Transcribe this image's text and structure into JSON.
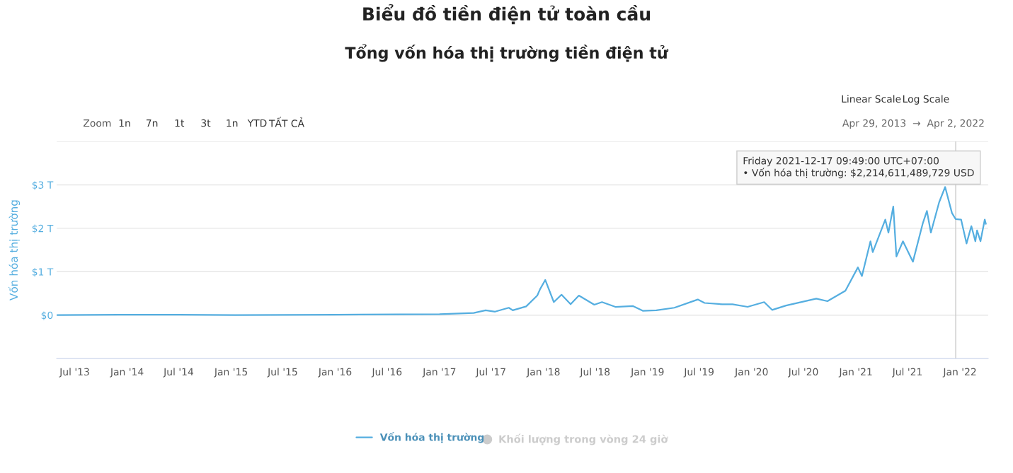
{
  "chart_data": {
    "type": "line",
    "title": "Biểu đồ tiền điện tử toàn cầu",
    "subtitle": "Tổng vốn hóa thị trường tiền điện tử",
    "ylabel": "Vốn hóa thị trường",
    "x": [
      "2013-04-29",
      "2013-11-30",
      "2014-06-01",
      "2015-01-15",
      "2016-01-01",
      "2017-01-01",
      "2017-05-01",
      "2017-06-12",
      "2017-07-15",
      "2017-09-01",
      "2017-09-15",
      "2017-11-01",
      "2017-12-10",
      "2017-12-20",
      "2018-01-07",
      "2018-02-06",
      "2018-03-05",
      "2018-04-06",
      "2018-05-05",
      "2018-06-28",
      "2018-07-25",
      "2018-09-10",
      "2018-11-10",
      "2018-12-15",
      "2019-02-01",
      "2019-04-05",
      "2019-06-26",
      "2019-07-20",
      "2019-09-20",
      "2019-10-26",
      "2019-12-18",
      "2020-02-14",
      "2020-03-13",
      "2020-05-01",
      "2020-08-15",
      "2020-09-23",
      "2020-11-25",
      "2021-01-08",
      "2021-01-22",
      "2021-02-21",
      "2021-03-01",
      "2021-04-14",
      "2021-04-25",
      "2021-05-12",
      "2021-05-23",
      "2021-06-15",
      "2021-07-20",
      "2021-08-23",
      "2021-09-07",
      "2021-09-21",
      "2021-10-20",
      "2021-11-10",
      "2021-12-04",
      "2021-12-17",
      "2022-01-05",
      "2022-01-24",
      "2022-02-10",
      "2022-02-24",
      "2022-03-02",
      "2022-03-14",
      "2022-03-29",
      "2022-04-02"
    ],
    "series": [
      {
        "name": "Vốn hóa thị trường",
        "color": "#55aee0",
        "values": [
          0.0,
          0.01,
          0.01,
          0.0,
          0.01,
          0.02,
          0.05,
          0.11,
          0.08,
          0.17,
          0.11,
          0.2,
          0.45,
          0.6,
          0.81,
          0.3,
          0.47,
          0.25,
          0.45,
          0.24,
          0.3,
          0.19,
          0.21,
          0.1,
          0.11,
          0.17,
          0.36,
          0.28,
          0.25,
          0.25,
          0.19,
          0.3,
          0.12,
          0.22,
          0.38,
          0.32,
          0.56,
          1.1,
          0.9,
          1.7,
          1.45,
          2.2,
          1.9,
          2.5,
          1.35,
          1.7,
          1.23,
          2.1,
          2.4,
          1.9,
          2.6,
          2.95,
          2.35,
          2.21,
          2.2,
          1.65,
          2.05,
          1.7,
          1.95,
          1.7,
          2.2,
          2.1
        ]
      }
    ],
    "xlim": [
      "2013-04-29",
      "2022-04-10"
    ],
    "xticks": [
      {
        "value": "2013-07-01",
        "label": "Jul '13"
      },
      {
        "value": "2014-01-01",
        "label": "Jan '14"
      },
      {
        "value": "2014-07-01",
        "label": "Jul '14"
      },
      {
        "value": "2015-01-01",
        "label": "Jan '15"
      },
      {
        "value": "2015-07-01",
        "label": "Jul '15"
      },
      {
        "value": "2016-01-01",
        "label": "Jan '16"
      },
      {
        "value": "2016-07-01",
        "label": "Jul '16"
      },
      {
        "value": "2017-01-01",
        "label": "Jan '17"
      },
      {
        "value": "2017-07-01",
        "label": "Jul '17"
      },
      {
        "value": "2018-01-01",
        "label": "Jan '18"
      },
      {
        "value": "2018-07-01",
        "label": "Jul '18"
      },
      {
        "value": "2019-01-01",
        "label": "Jan '19"
      },
      {
        "value": "2019-07-01",
        "label": "Jul '19"
      },
      {
        "value": "2020-01-01",
        "label": "Jan '20"
      },
      {
        "value": "2020-07-01",
        "label": "Jul '20"
      },
      {
        "value": "2021-01-01",
        "label": "Jan '21"
      },
      {
        "value": "2021-07-01",
        "label": "Jul '21"
      },
      {
        "value": "2022-01-01",
        "label": "Jan '22"
      }
    ],
    "ylim": [
      -1,
      4
    ],
    "yticks": [
      {
        "value": 0,
        "label": "$0"
      },
      {
        "value": 1,
        "label": "$1 T"
      },
      {
        "value": 2,
        "label": "$2 T"
      },
      {
        "value": 3,
        "label": "$3 T"
      },
      {
        "value": 4,
        "label": null
      }
    ],
    "ref_lines": [
      {
        "axis": "x",
        "value": "2021-12-17",
        "color": "#cccccc"
      }
    ],
    "annotations": [
      "Friday 2021-12-17 09:49:00 UTC+07:00\n• Vốn hóa thị trường: $2,214,611,489,729 USD",
      "Linear Scale",
      "Log Scale",
      "Zoom",
      "1n",
      "7n",
      "1t",
      "3t",
      "1n",
      "YTD",
      "TẤT CẢ",
      "Apr 29, 2013  →  Apr 2, 2022",
      "Khối lượng trong vòng 24 giờ"
    ],
    "grid": "y",
    "legend": "bottom"
  }
}
